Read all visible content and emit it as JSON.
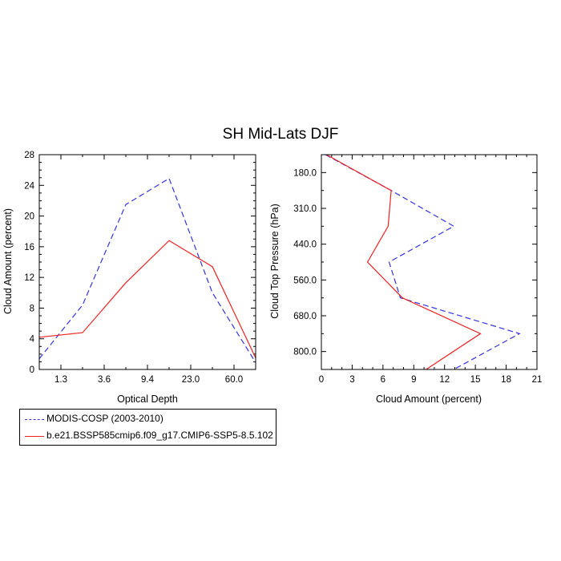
{
  "title": "SH Mid-Lats DJF",
  "legend": [
    {
      "label": "MODIS-COSP (2003-2010)",
      "color": "#3333dd",
      "dash": "dashed"
    },
    {
      "label": "b.e21.BSSP585cmip6.f09_g17.CMIP6-SSP5-8.5.102",
      "color": "#ee2222",
      "dash": "solid"
    }
  ],
  "chart_data": [
    {
      "type": "line",
      "xlabel": "Optical Depth",
      "ylabel": "Cloud Amount (percent)",
      "x_ticklabels": [
        "1.3",
        "3.6",
        "9.4",
        "23.0",
        "60.0"
      ],
      "ylim": [
        0,
        28
      ],
      "y_ticks": [
        0,
        4,
        8,
        12,
        16,
        20,
        24,
        28
      ],
      "series": [
        {
          "name": "MODIS-COSP (2003-2010)",
          "color": "#3333dd",
          "dash": "dashed",
          "values": [
            1.4,
            8.4,
            21.5,
            24.9,
            10.0,
            0.9
          ]
        },
        {
          "name": "b.e21.BSSP585cmip6.f09_g17.CMIP6-SSP5-8.5.102",
          "color": "#ee2222",
          "dash": "solid",
          "values": [
            4.2,
            4.8,
            11.3,
            16.8,
            13.4,
            1.5
          ]
        }
      ]
    },
    {
      "type": "line",
      "xlabel": "Cloud Amount (percent)",
      "ylabel": "Cloud Top Pressure (hPa)",
      "xlim": [
        0,
        21
      ],
      "x_ticks": [
        0,
        3,
        6,
        9,
        12,
        15,
        18,
        21
      ],
      "y_ticks": [
        180.0,
        310.0,
        440.0,
        560.0,
        680.0,
        800.0
      ],
      "y_ticklabels": [
        "180.0",
        "310.0",
        "440.0",
        "560.0",
        "680.0",
        "800.0"
      ],
      "series": [
        {
          "name": "MODIS-COSP (2003-2010)",
          "color": "#3333dd",
          "dash": "dashed",
          "values": [
            0.4,
            6.8,
            12.9,
            6.6,
            7.7,
            19.3,
            12.9
          ]
        },
        {
          "name": "b.e21.BSSP585cmip6.f09_g17.CMIP6-SSP5-8.5.102",
          "color": "#ee2222",
          "dash": "solid",
          "values": [
            0.5,
            6.8,
            6.5,
            4.5,
            7.9,
            15.5,
            10.2
          ]
        }
      ]
    }
  ]
}
